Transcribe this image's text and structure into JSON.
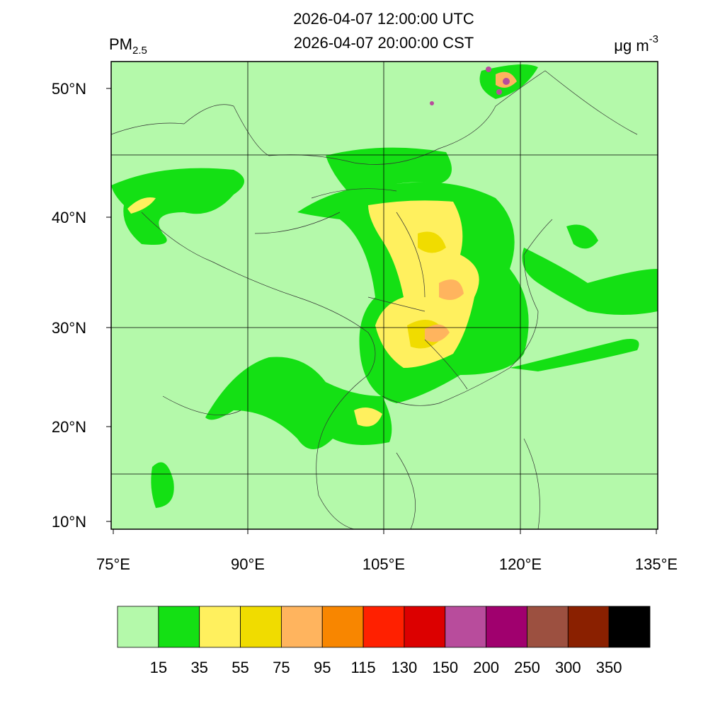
{
  "title": [
    "2026-04-07 12:00:00 UTC",
    "2026-04-07 20:00:00 CST"
  ],
  "variable": {
    "name": "PM",
    "subscript": "2.5"
  },
  "units": {
    "text": "μg m",
    "superscript": "-3"
  },
  "lat_ticks": [
    {
      "value": 50,
      "label": "50°N"
    },
    {
      "value": 40,
      "label": "40°N"
    },
    {
      "value": 30,
      "label": "30°N"
    },
    {
      "value": 20,
      "label": "20°N"
    },
    {
      "value": 10,
      "label": "10°N"
    }
  ],
  "lon_ticks": [
    {
      "value": 75,
      "label": "75°E"
    },
    {
      "value": 90,
      "label": "90°E"
    },
    {
      "value": 105,
      "label": "105°E"
    },
    {
      "value": 120,
      "label": "120°E"
    },
    {
      "value": 135,
      "label": "135°E"
    }
  ],
  "colorbar": {
    "colors": [
      "#b4f9aa",
      "#14e014",
      "#fff05e",
      "#f0dc00",
      "#ffb45e",
      "#f88600",
      "#ff2000",
      "#dc0000",
      "#b84c9c",
      "#a0006e",
      "#9c5040",
      "#8a2000",
      "#000000"
    ],
    "levels": [
      15,
      35,
      55,
      75,
      95,
      115,
      130,
      150,
      200,
      250,
      300,
      350
    ]
  }
}
